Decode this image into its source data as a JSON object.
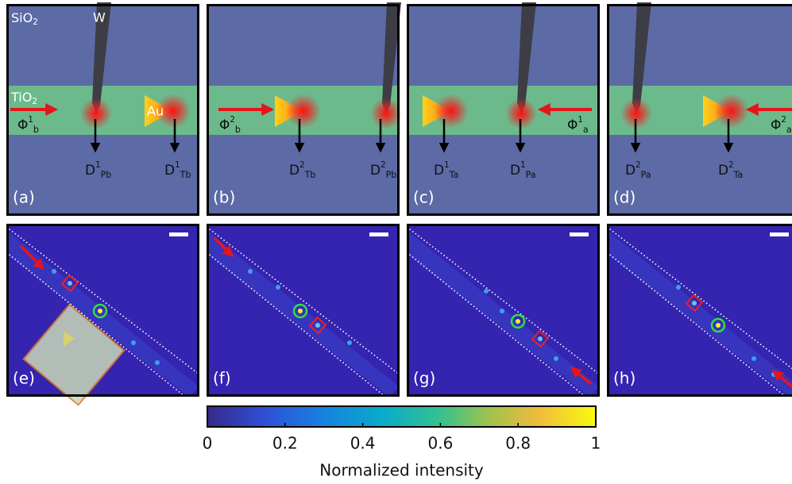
{
  "top_panels": [
    {
      "label": "(a)",
      "cladding": {
        "base": "SiO",
        "sub": "2"
      },
      "tip": "W",
      "core": {
        "base": "TiO",
        "sub": "2"
      },
      "particle": "Au",
      "input": {
        "base": "Φ",
        "sup": "1",
        "sub": "b"
      },
      "detectors": [
        {
          "base": "D",
          "sup": "1",
          "sub": "Pb"
        },
        {
          "base": "D",
          "sup": "1",
          "sub": "Tb"
        }
      ]
    },
    {
      "label": "(b)",
      "input": {
        "base": "Φ",
        "sup": "2",
        "sub": "b"
      },
      "detectors": [
        {
          "base": "D",
          "sup": "2",
          "sub": "Tb"
        },
        {
          "base": "D",
          "sup": "2",
          "sub": "Pb"
        }
      ]
    },
    {
      "label": "(c)",
      "input": {
        "base": "Φ",
        "sup": "1",
        "sub": "a"
      },
      "detectors": [
        {
          "base": "D",
          "sup": "1",
          "sub": "Ta"
        },
        {
          "base": "D",
          "sup": "1",
          "sub": "Pa"
        }
      ]
    },
    {
      "label": "(d)",
      "input": {
        "base": "Φ",
        "sup": "2",
        "sub": "a"
      },
      "detectors": [
        {
          "base": "D",
          "sup": "2",
          "sub": "Pa"
        },
        {
          "base": "D",
          "sup": "2",
          "sub": "Ta"
        }
      ]
    }
  ],
  "bottom_panels": [
    {
      "label": "(e)"
    },
    {
      "label": "(f)"
    },
    {
      "label": "(g)"
    },
    {
      "label": "(h)"
    }
  ],
  "colorbar": {
    "lim": [
      0,
      1
    ],
    "ticks": [
      0,
      0.2,
      0.4,
      0.6,
      0.8,
      1
    ],
    "label": "Normalized intensity"
  }
}
